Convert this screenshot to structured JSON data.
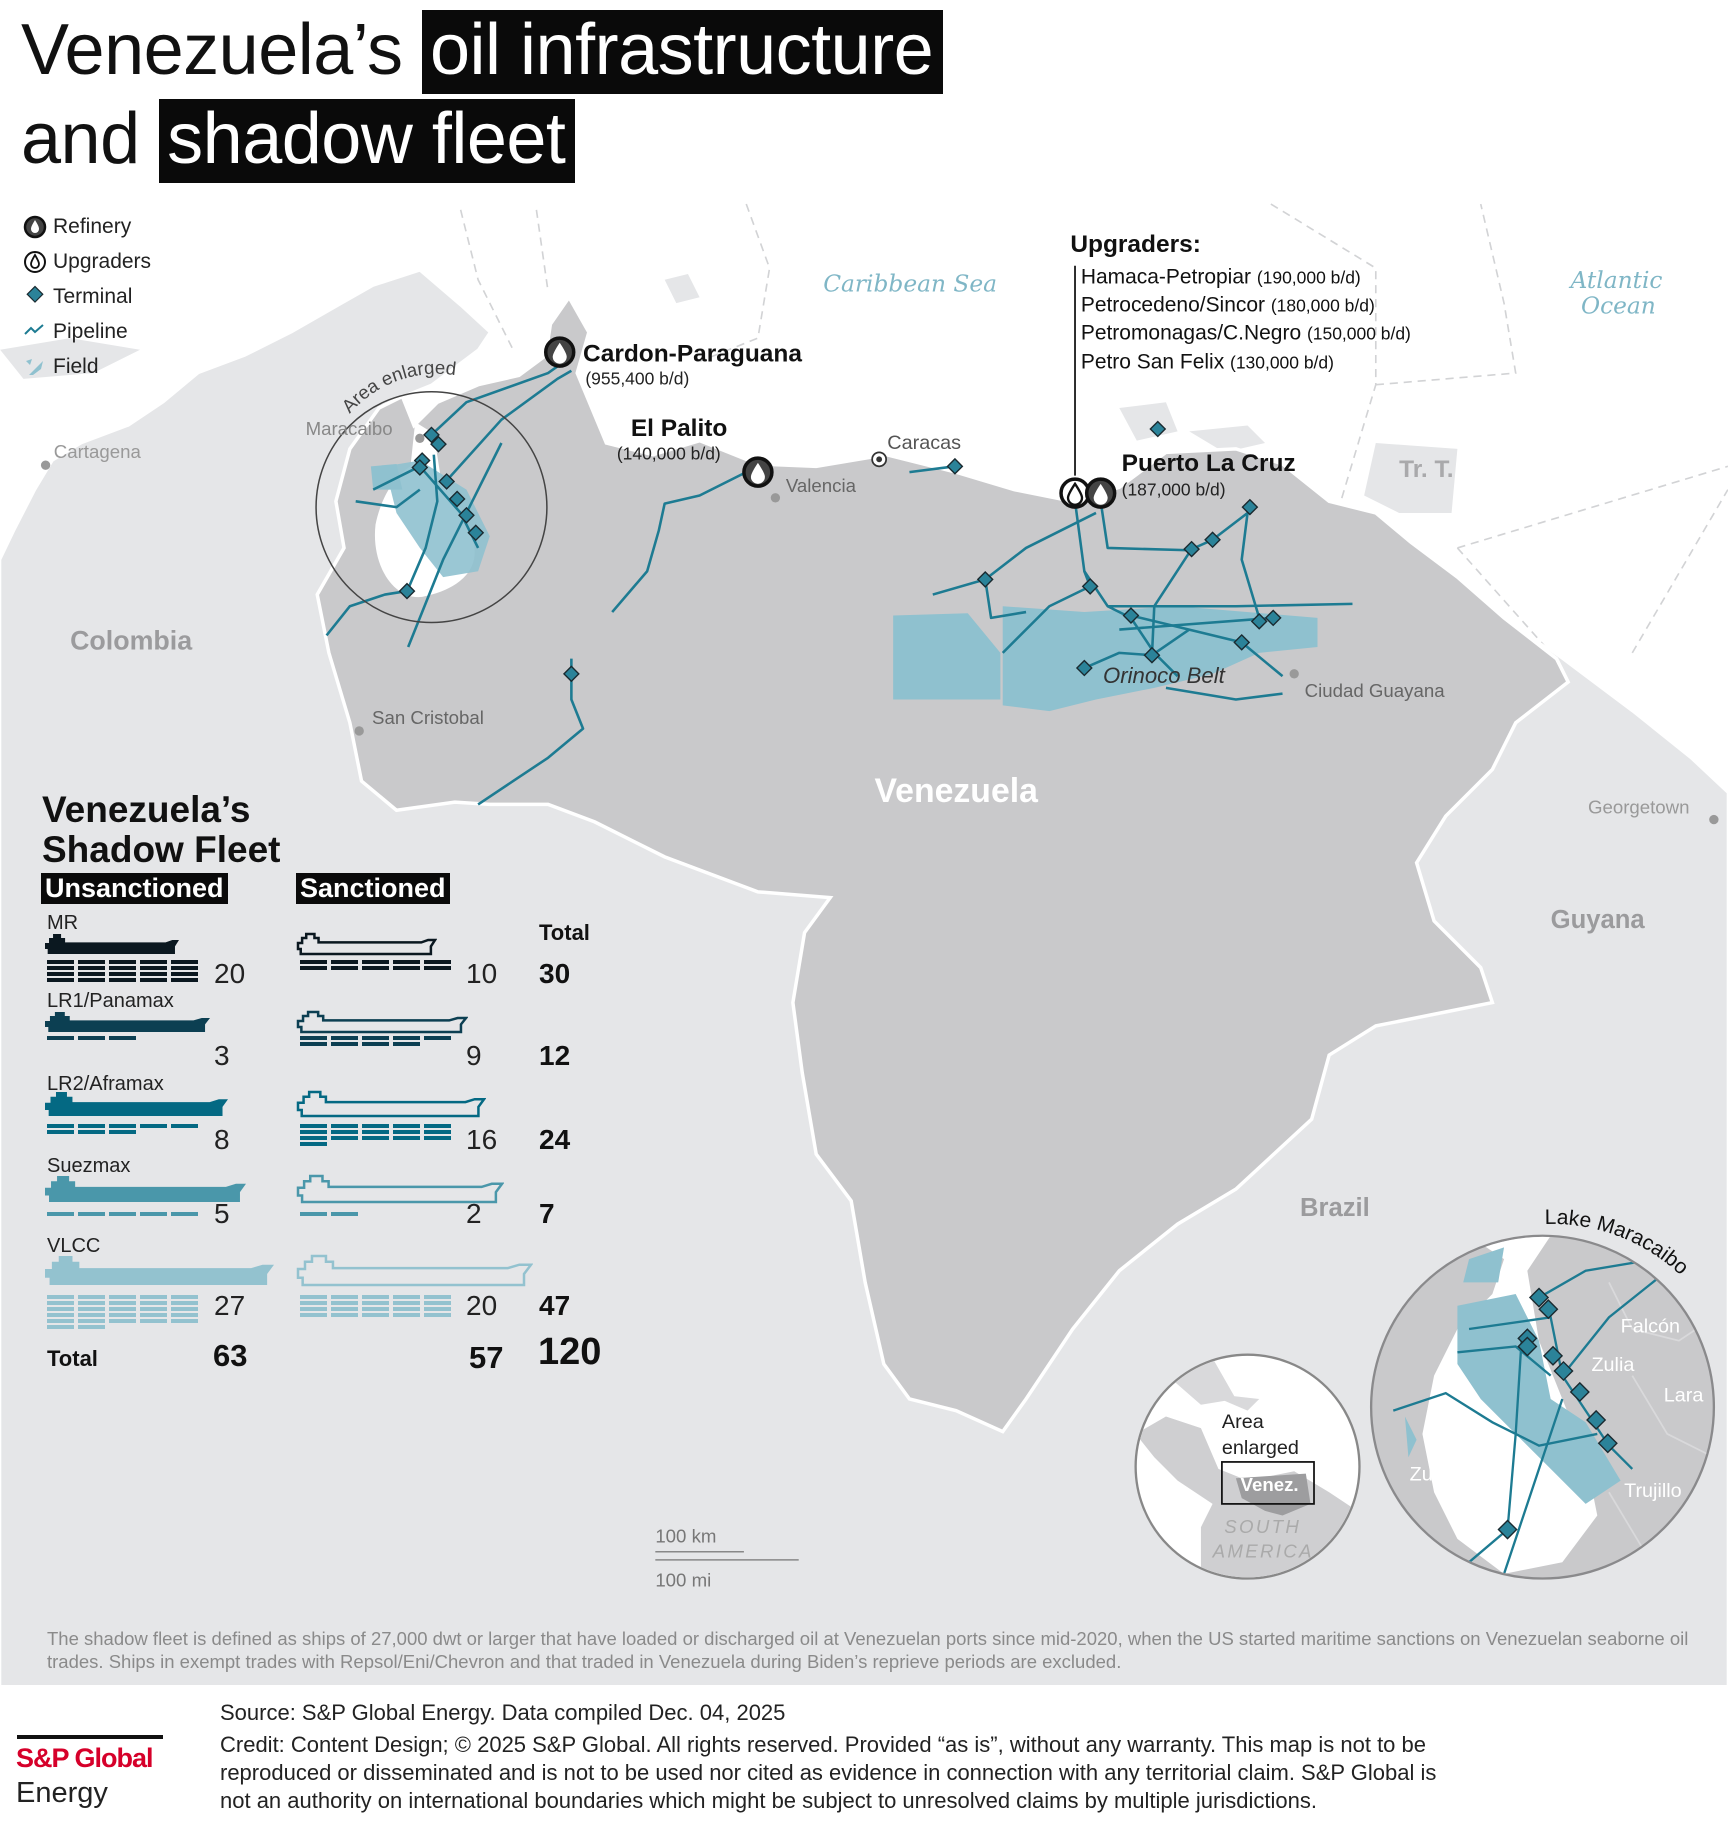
{
  "title": {
    "line1_plain": "Venezuela’s",
    "line1_highlight": "oil infrastructure",
    "line2_plain": "and",
    "line2_highlight": "shadow fleet"
  },
  "legend": [
    {
      "label": "Refinery",
      "icon": "refinery-icon"
    },
    {
      "label": "Upgraders",
      "icon": "upgrader-icon"
    },
    {
      "label": "Terminal",
      "icon": "terminal-diamond-icon"
    },
    {
      "label": "Pipeline",
      "icon": "pipeline-icon"
    },
    {
      "label": "Field",
      "icon": "field-icon"
    }
  ],
  "colors": {
    "pipeline": "#1d7b92",
    "terminal": "#2b8399",
    "field": "#8fc1cf",
    "venezuela": "#c9c9cb",
    "neighbors": "#e5e6e8",
    "sea_label": "#7fb6c6",
    "mr": "#0b1820",
    "lr1": "#0c3f52",
    "lr2": "#046983",
    "suezmax": "#4a97aa",
    "vlcc": "#93c2cf",
    "brand_red": "#d6002a"
  },
  "map": {
    "seas": {
      "caribbean": "Caribbean Sea",
      "atlantic_1": "Atlantic",
      "atlantic_2": "Ocean"
    },
    "countries": {
      "colombia": "Colombia",
      "venezuela": "Venezuela",
      "guyana": "Guyana",
      "brazil": "Brazil",
      "trinidad": "Tr. T."
    },
    "cities": {
      "cartagena": "Cartagena",
      "maracaibo": "Maracaibo",
      "valencia": "Valencia",
      "caracas": "Caracas",
      "san_cristobal": "San Cristobal",
      "ciudad_guayana": "Ciudad Guayana",
      "georgetown": "Georgetown"
    },
    "area_enlarged": "Area enlarged",
    "orinoco_belt": "Orinoco Belt",
    "refineries": [
      {
        "name": "Cardon-Paraguana",
        "capacity": "(955,400 b/d)"
      },
      {
        "name": "El Palito",
        "capacity": "(140,000 b/d)"
      },
      {
        "name": "Puerto La Cruz",
        "capacity": "(187,000 b/d)"
      }
    ],
    "upgraders": {
      "heading": "Upgraders:",
      "items": [
        {
          "name": "Hamaca-Petropiar",
          "capacity": "(190,000 b/d)"
        },
        {
          "name": "Petrocedeno/Sincor",
          "capacity": "(180,000 b/d)"
        },
        {
          "name": "Petromonagas/C.Negro",
          "capacity": "(150,000 b/d)"
        },
        {
          "name": "Petro San Felix",
          "capacity": "(130,000 b/d)"
        }
      ]
    },
    "scale": {
      "km": "100 km",
      "mi": "100 mi"
    },
    "locator": {
      "label_1": "Area",
      "label_2": "enlarged",
      "box": "Venez.",
      "continent_1": "SOUTH",
      "continent_2": "AMERICA"
    },
    "inset": {
      "title": "Lake Maracaibo",
      "regions": [
        "Falcón",
        "Zulia",
        "Lara",
        "Zulia",
        "Trujillo"
      ]
    }
  },
  "shadow_fleet": {
    "title_1": "Venezuela’s",
    "title_2": "Shadow Fleet",
    "unsanctioned_label": "Unsanctioned",
    "sanctioned_label": "Sanctioned",
    "total_header": "Total",
    "categories": [
      {
        "name": "MR",
        "unsanctioned": "20",
        "sanctioned": "10",
        "total": "30",
        "color": "#0b1820"
      },
      {
        "name": "LR1/Panamax",
        "unsanctioned": "3",
        "sanctioned": "9",
        "total": "12",
        "color": "#0c3f52"
      },
      {
        "name": "LR2/Aframax",
        "unsanctioned": "8",
        "sanctioned": "16",
        "total": "24",
        "color": "#046983"
      },
      {
        "name": "Suezmax",
        "unsanctioned": "5",
        "sanctioned": "2",
        "total": "7",
        "color": "#4a97aa"
      },
      {
        "name": "VLCC",
        "unsanctioned": "27",
        "sanctioned": "20",
        "total": "47",
        "color": "#93c2cf"
      }
    ],
    "totals": {
      "label": "Total",
      "unsanctioned": "63",
      "sanctioned": "57",
      "overall": "120"
    }
  },
  "footnote": "The shadow fleet is defined as ships of 27,000 dwt or larger that have loaded or discharged oil at Venezuelan ports since mid-2020, when the US started maritime sanctions on Venezuelan seaborne oil trades. Ships in exempt trades with Repsol/Eni/Chevron and that traded in Venezuela during Biden’s reprieve periods are excluded.",
  "footer": {
    "source": "Source: S&P Global Energy. Data compiled Dec. 04, 2025",
    "credit_1": "Credit:  Content Design; © 2025 S&P Global. All rights reserved. Provided “as is”, without any warranty. This map is not to be",
    "credit_2": "reproduced or disseminated and is not to be used nor cited as evidence in connection with any territorial claim. S&P Global is",
    "credit_3": "not an authority on international boundaries which might be subject to unresolved claims by multiple jurisdictions.",
    "logo_1": "S&P Global",
    "logo_2": "Energy"
  }
}
